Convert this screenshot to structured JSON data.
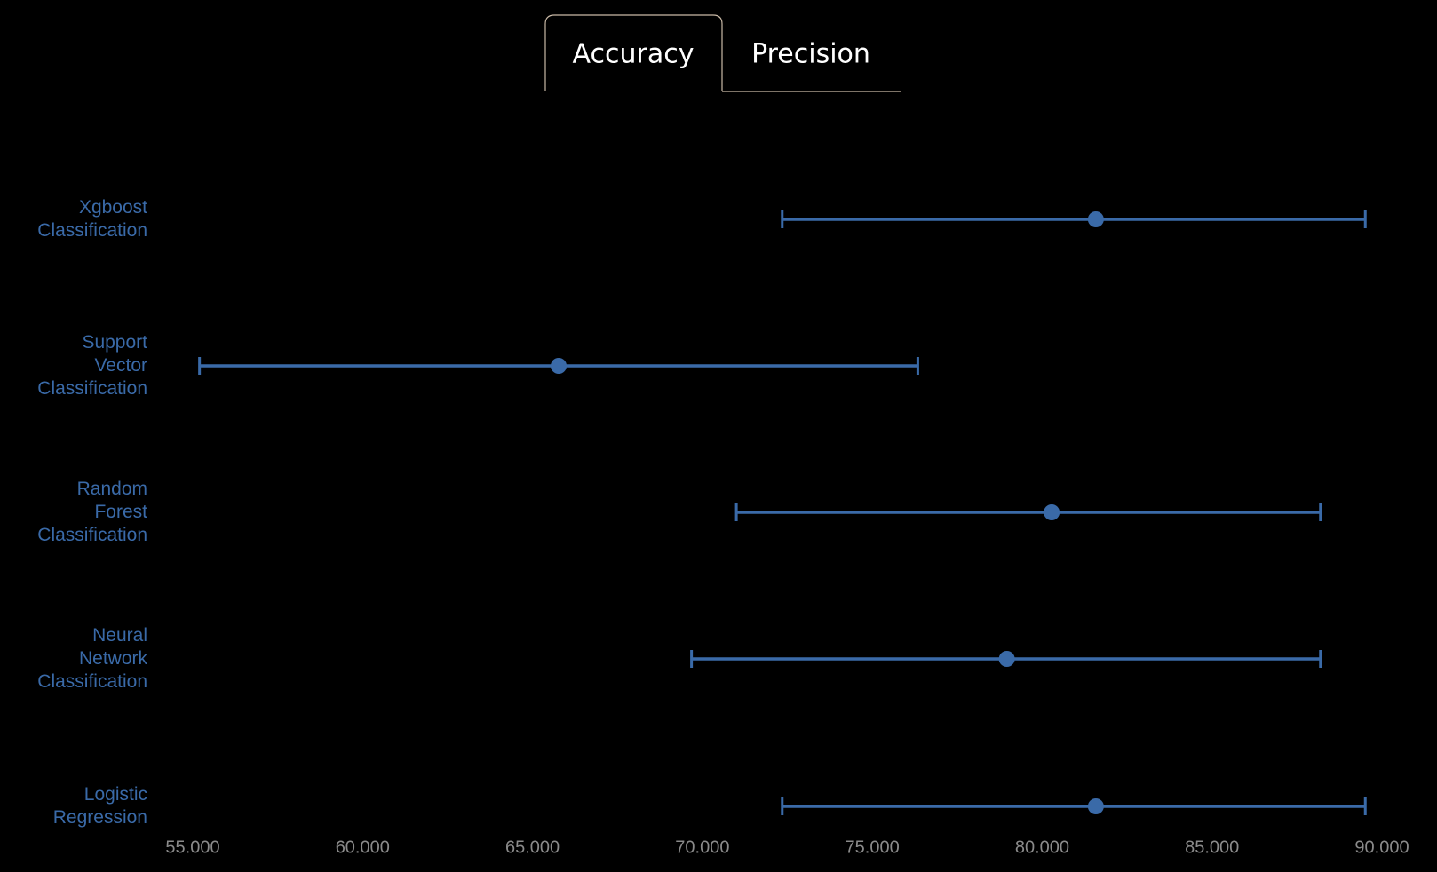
{
  "tabs": [
    "Accuracy",
    "Precision"
  ],
  "chart_data": {
    "type": "errorbar",
    "categories": [
      "Xgboost Classification",
      "Support Vector Classification",
      "Random Forest Classification",
      "Neural Network Classification",
      "Logistic Regression"
    ],
    "values": [
      81.58,
      65.77,
      80.28,
      78.96,
      81.58
    ],
    "lower": [
      72.35,
      55.2,
      71.0,
      69.68,
      72.35
    ],
    "upper": [
      89.51,
      76.34,
      88.19,
      88.19,
      89.51
    ],
    "color": "#3a6aa8",
    "xlim": [
      55,
      90
    ],
    "xticks": [
      {
        "value": 55,
        "label": "55.000"
      },
      {
        "value": 60,
        "label": "60.000"
      },
      {
        "value": 65,
        "label": "65.000"
      },
      {
        "value": 70,
        "label": "70.000"
      },
      {
        "value": 75,
        "label": "75.000"
      },
      {
        "value": 80,
        "label": "80.000"
      },
      {
        "value": 85,
        "label": "85.000"
      },
      {
        "value": 90,
        "label": "90.000"
      }
    ]
  }
}
